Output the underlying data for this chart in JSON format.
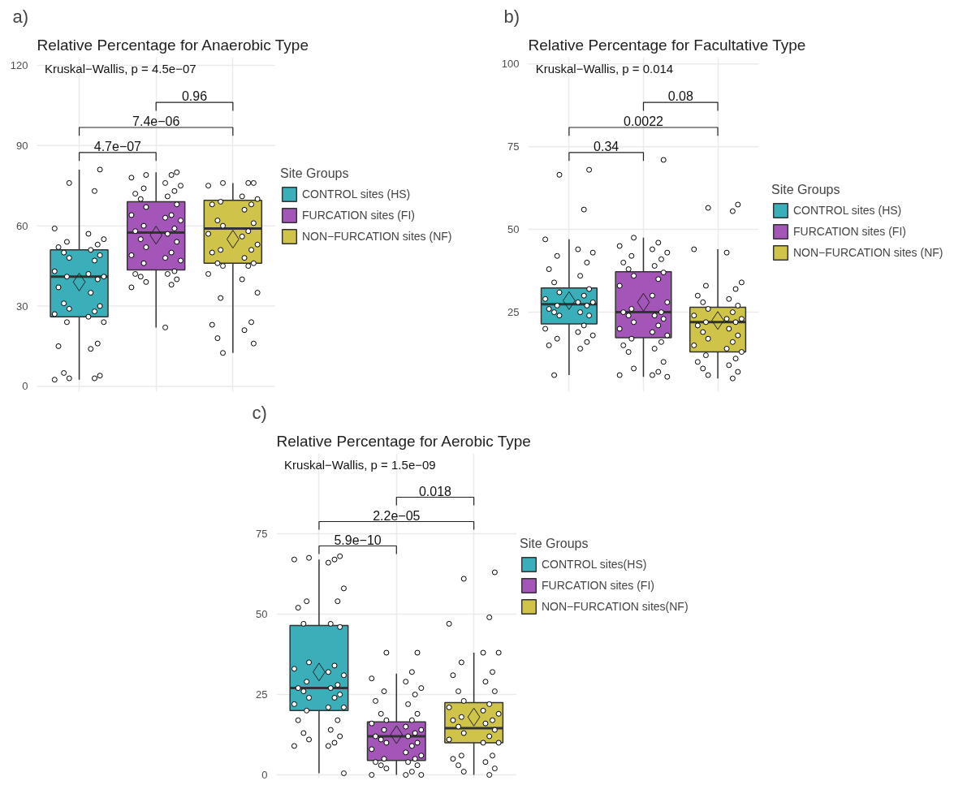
{
  "chart_data": [
    {
      "type": "box",
      "title": "Relative Percentage for Anaerobic Type",
      "legend_title": "Site Groups",
      "categories": [
        null,
        null,
        null
      ],
      "ylim": [
        -2,
        123
      ],
      "yticks": [
        0,
        30,
        60,
        90,
        120
      ],
      "grid": true,
      "legend": "right",
      "marker": "circle",
      "annotations": [
        "a)",
        "Kruskal−Wallis, p = 4.5e−07",
        "4.7e−07",
        "7.4e−06",
        "0.96"
      ],
      "series": [
        {
          "name": "CONTROL sites (HS)",
          "color": "#3aafb9",
          "boxes": [
            {
              "low": 2.5,
              "q1": 26,
              "median": 41,
              "q3": 51,
              "high": 81,
              "mean": 39
            },
            null,
            null
          ]
        },
        {
          "name": "FURCATION sites (FI)",
          "color": "#a356b8",
          "boxes": [
            null,
            {
              "low": 22,
              "q1": 43.5,
              "median": 57.5,
              "q3": 69,
              "high": 80,
              "mean": 56.5
            },
            null
          ]
        },
        {
          "name": "NON−FURCATION sites (NF)",
          "color": "#cfc34a",
          "boxes": [
            null,
            null,
            {
              "low": 12.5,
              "q1": 46,
              "median": 59,
              "q3": 69.5,
              "high": 76,
              "mean": 55
            }
          ]
        },
        {
          "type": "scatter",
          "color": "#000000",
          "values": [
            81,
            80,
            76
          ]
        },
        {
          "type": "scatter",
          "color": "#000000",
          "values": [
            76,
            79,
            76
          ]
        },
        {
          "type": "scatter",
          "color": "#000000",
          "values": [
            73,
            79,
            76
          ]
        },
        {
          "type": "scatter",
          "color": "#000000",
          "values": [
            59,
            78,
            75
          ]
        },
        {
          "type": "scatter",
          "color": "#000000",
          "values": [
            57,
            76,
            71
          ]
        },
        {
          "type": "scatter",
          "color": "#000000",
          "values": [
            55,
            75,
            70
          ]
        },
        {
          "type": "scatter",
          "color": "#000000",
          "values": [
            54,
            74,
            69
          ]
        },
        {
          "type": "scatter",
          "color": "#000000",
          "values": [
            53,
            73,
            68
          ]
        },
        {
          "type": "scatter",
          "color": "#000000",
          "values": [
            52,
            72,
            68
          ]
        },
        {
          "type": "scatter",
          "color": "#000000",
          "values": [
            51,
            71,
            66
          ]
        },
        {
          "type": "scatter",
          "color": "#000000",
          "values": [
            50,
            70,
            62
          ]
        },
        {
          "type": "scatter",
          "color": "#000000",
          "values": [
            49,
            68,
            61
          ]
        },
        {
          "type": "scatter",
          "color": "#000000",
          "values": [
            48,
            67,
            60
          ]
        },
        {
          "type": "scatter",
          "color": "#000000",
          "values": [
            47,
            64,
            58
          ]
        },
        {
          "type": "scatter",
          "color": "#000000",
          "values": [
            43,
            64,
            57
          ]
        },
        {
          "type": "scatter",
          "color": "#000000",
          "values": [
            42,
            63,
            56
          ]
        },
        {
          "type": "scatter",
          "color": "#000000",
          "values": [
            41,
            62,
            53
          ]
        },
        {
          "type": "scatter",
          "color": "#000000",
          "values": [
            41,
            60,
            51
          ]
        },
        {
          "type": "scatter",
          "color": "#000000",
          "values": [
            40,
            59,
            51
          ]
        },
        {
          "type": "scatter",
          "color": "#000000",
          "values": [
            37,
            58,
            50
          ]
        },
        {
          "type": "scatter",
          "color": "#000000",
          "values": [
            35,
            57,
            48
          ]
        },
        {
          "type": "scatter",
          "color": "#000000",
          "values": [
            31,
            55,
            46
          ]
        },
        {
          "type": "scatter",
          "color": "#000000",
          "values": [
            30,
            54,
            46
          ]
        },
        {
          "type": "scatter",
          "color": "#000000",
          "values": [
            29,
            52,
            45
          ]
        },
        {
          "type": "scatter",
          "color": "#000000",
          "values": [
            28,
            50,
            45
          ]
        },
        {
          "type": "scatter",
          "color": "#000000",
          "values": [
            27,
            49,
            42
          ]
        },
        {
          "type": "scatter",
          "color": "#000000",
          "values": [
            26,
            48,
            40
          ]
        },
        {
          "type": "scatter",
          "color": "#000000",
          "values": [
            24,
            47,
            35
          ]
        },
        {
          "type": "scatter",
          "color": "#000000",
          "values": [
            24,
            46,
            33
          ]
        },
        {
          "type": "scatter",
          "color": "#000000",
          "values": [
            16,
            43,
            24
          ]
        },
        {
          "type": "scatter",
          "color": "#000000",
          "values": [
            15,
            42,
            23
          ]
        },
        {
          "type": "scatter",
          "color": "#000000",
          "values": [
            14,
            42,
            21
          ]
        },
        {
          "type": "scatter",
          "color": "#000000",
          "values": [
            5,
            41,
            18
          ]
        },
        {
          "type": "scatter",
          "color": "#000000",
          "values": [
            4,
            40,
            16
          ]
        },
        {
          "type": "scatter",
          "color": "#000000",
          "values": [
            3,
            39,
            12.5
          ]
        },
        {
          "type": "scatter",
          "color": "#000000",
          "values": [
            3,
            38,
            null
          ]
        },
        {
          "type": "scatter",
          "color": "#000000",
          "values": [
            2.5,
            37,
            null
          ]
        },
        {
          "type": "scatter",
          "color": "#000000",
          "values": [
            null,
            22,
            null
          ]
        }
      ]
    },
    {
      "type": "box",
      "title": "Relative Percentage for Facultative Type",
      "legend_title": "Site Groups",
      "categories": [
        null,
        null,
        null
      ],
      "ylim": [
        1,
        102
      ],
      "yticks": [
        25,
        50,
        75,
        100
      ],
      "grid": true,
      "legend": "right",
      "marker": "circle",
      "annotations": [
        "b)",
        "Kruskal−Wallis, p = 0.014",
        "0.34",
        "0.0022",
        "0.08"
      ],
      "series": [
        {
          "name": "CONTROL sites (HS)",
          "color": "#3aafb9",
          "boxes": [
            {
              "low": 6,
              "q1": 21.5,
              "median": 27.4,
              "q3": 32.3,
              "high": 47,
              "mean": 28.5
            },
            null,
            null
          ]
        },
        {
          "name": "FURCATION sites (FI)",
          "color": "#a356b8",
          "boxes": [
            null,
            {
              "low": 5.5,
              "q1": 17.3,
              "median": 25,
              "q3": 37.2,
              "high": 47.5,
              "mean": 28
            },
            null
          ]
        },
        {
          "name": "NON−FURCATION sites (NF)",
          "color": "#cfc34a",
          "boxes": [
            null,
            null,
            {
              "low": 5,
              "q1": 13,
              "median": 22,
              "q3": 26.5,
              "high": 44,
              "mean": 22.5
            }
          ]
        },
        {
          "type": "scatter",
          "color": "#000000",
          "values": [
            68,
            71,
            57.5
          ]
        },
        {
          "type": "scatter",
          "color": "#000000",
          "values": [
            66.5,
            47.5,
            56.5
          ]
        },
        {
          "type": "scatter",
          "color": "#000000",
          "values": [
            56,
            46,
            55.5
          ]
        },
        {
          "type": "scatter",
          "color": "#000000",
          "values": [
            47,
            45,
            44
          ]
        },
        {
          "type": "scatter",
          "color": "#000000",
          "values": [
            44,
            44,
            43
          ]
        },
        {
          "type": "scatter",
          "color": "#000000",
          "values": [
            43,
            43,
            34
          ]
        },
        {
          "type": "scatter",
          "color": "#000000",
          "values": [
            42,
            42,
            33
          ]
        },
        {
          "type": "scatter",
          "color": "#000000",
          "values": [
            40,
            41,
            32
          ]
        },
        {
          "type": "scatter",
          "color": "#000000",
          "values": [
            38,
            40,
            30
          ]
        },
        {
          "type": "scatter",
          "color": "#000000",
          "values": [
            36,
            39,
            29
          ]
        },
        {
          "type": "scatter",
          "color": "#000000",
          "values": [
            34,
            38,
            28
          ]
        },
        {
          "type": "scatter",
          "color": "#000000",
          "values": [
            32,
            37,
            27
          ]
        },
        {
          "type": "scatter",
          "color": "#000000",
          "values": [
            31,
            36,
            26
          ]
        },
        {
          "type": "scatter",
          "color": "#000000",
          "values": [
            30,
            35,
            25
          ]
        },
        {
          "type": "scatter",
          "color": "#000000",
          "values": [
            29,
            33,
            24
          ]
        },
        {
          "type": "scatter",
          "color": "#000000",
          "values": [
            28,
            30,
            23
          ]
        },
        {
          "type": "scatter",
          "color": "#000000",
          "values": [
            28,
            28,
            23
          ]
        },
        {
          "type": "scatter",
          "color": "#000000",
          "values": [
            27,
            26,
            22
          ]
        },
        {
          "type": "scatter",
          "color": "#000000",
          "values": [
            27,
            25,
            22
          ]
        },
        {
          "type": "scatter",
          "color": "#000000",
          "values": [
            26,
            25,
            21
          ]
        },
        {
          "type": "scatter",
          "color": "#000000",
          "values": [
            25,
            24,
            20
          ]
        },
        {
          "type": "scatter",
          "color": "#000000",
          "values": [
            25,
            24,
            19
          ]
        },
        {
          "type": "scatter",
          "color": "#000000",
          "values": [
            24,
            23,
            18
          ]
        },
        {
          "type": "scatter",
          "color": "#000000",
          "values": [
            24,
            22,
            17
          ]
        },
        {
          "type": "scatter",
          "color": "#000000",
          "values": [
            21,
            21,
            16
          ]
        },
        {
          "type": "scatter",
          "color": "#000000",
          "values": [
            20,
            20,
            15
          ]
        },
        {
          "type": "scatter",
          "color": "#000000",
          "values": [
            19,
            19,
            14
          ]
        },
        {
          "type": "scatter",
          "color": "#000000",
          "values": [
            18,
            18,
            13
          ]
        },
        {
          "type": "scatter",
          "color": "#000000",
          "values": [
            17,
            17,
            12
          ]
        },
        {
          "type": "scatter",
          "color": "#000000",
          "values": [
            16,
            16,
            11
          ]
        },
        {
          "type": "scatter",
          "color": "#000000",
          "values": [
            15,
            15,
            10
          ]
        },
        {
          "type": "scatter",
          "color": "#000000",
          "values": [
            14,
            14,
            9
          ]
        },
        {
          "type": "scatter",
          "color": "#000000",
          "values": [
            6,
            13,
            8
          ]
        },
        {
          "type": "scatter",
          "color": "#000000",
          "values": [
            null,
            10,
            7
          ]
        },
        {
          "type": "scatter",
          "color": "#000000",
          "values": [
            null,
            8,
            6
          ]
        },
        {
          "type": "scatter",
          "color": "#000000",
          "values": [
            null,
            7,
            5
          ]
        },
        {
          "type": "scatter",
          "color": "#000000",
          "values": [
            null,
            6,
            null
          ]
        },
        {
          "type": "scatter",
          "color": "#000000",
          "values": [
            null,
            6,
            null
          ]
        },
        {
          "type": "scatter",
          "color": "#000000",
          "values": [
            null,
            5.5,
            null
          ]
        }
      ]
    },
    {
      "type": "box",
      "title": "Relative Percentage for Aerobic Type",
      "legend_title": "Site Groups",
      "categories": [
        null,
        null,
        null
      ],
      "ylim": [
        -1,
        100
      ],
      "yticks": [
        0,
        25,
        50,
        75
      ],
      "grid": true,
      "legend": "right",
      "marker": "circle",
      "annotations": [
        "c)",
        "Kruskal−Wallis, p = 1.5e−09",
        "5.9e−10",
        "2.2e−05",
        "0.018"
      ],
      "series": [
        {
          "name": "CONTROL sites(HS)",
          "color": "#3aafb9",
          "boxes": [
            {
              "low": 0.5,
              "q1": 20,
              "median": 27,
              "q3": 46.5,
              "high": 67,
              "mean": 32
            },
            null,
            null
          ]
        },
        {
          "name": "FURCATION sites (FI)",
          "color": "#a356b8",
          "boxes": [
            null,
            {
              "low": 0,
              "q1": 4.5,
              "median": 12,
              "q3": 16.5,
              "high": 31.5,
              "mean": 12.5
            },
            null
          ]
        },
        {
          "name": "NON−FURCATION sites(NF)",
          "color": "#cfc34a",
          "boxes": [
            null,
            null,
            {
              "low": 0,
              "q1": 10,
              "median": 14.5,
              "q3": 22.5,
              "high": 38,
              "mean": 18
            }
          ]
        },
        {
          "type": "scatter",
          "color": "#000000",
          "values": [
            68,
            38,
            63
          ]
        },
        {
          "type": "scatter",
          "color": "#000000",
          "values": [
            67.5,
            38,
            61
          ]
        },
        {
          "type": "scatter",
          "color": "#000000",
          "values": [
            67,
            32,
            49
          ]
        },
        {
          "type": "scatter",
          "color": "#000000",
          "values": [
            67,
            30,
            47
          ]
        },
        {
          "type": "scatter",
          "color": "#000000",
          "values": [
            66,
            29,
            38
          ]
        },
        {
          "type": "scatter",
          "color": "#000000",
          "values": [
            58,
            27,
            38
          ]
        },
        {
          "type": "scatter",
          "color": "#000000",
          "values": [
            54,
            26,
            35
          ]
        },
        {
          "type": "scatter",
          "color": "#000000",
          "values": [
            54,
            25,
            32
          ]
        },
        {
          "type": "scatter",
          "color": "#000000",
          "values": [
            52,
            23,
            31
          ]
        },
        {
          "type": "scatter",
          "color": "#000000",
          "values": [
            47,
            22,
            29
          ]
        },
        {
          "type": "scatter",
          "color": "#000000",
          "values": [
            47,
            19,
            26
          ]
        },
        {
          "type": "scatter",
          "color": "#000000",
          "values": [
            46,
            19,
            26
          ]
        },
        {
          "type": "scatter",
          "color": "#000000",
          "values": [
            35,
            17,
            23
          ]
        },
        {
          "type": "scatter",
          "color": "#000000",
          "values": [
            34,
            17,
            22
          ]
        },
        {
          "type": "scatter",
          "color": "#000000",
          "values": [
            33,
            16,
            21
          ]
        },
        {
          "type": "scatter",
          "color": "#000000",
          "values": [
            32,
            15,
            20
          ]
        },
        {
          "type": "scatter",
          "color": "#000000",
          "values": [
            31,
            14,
            19
          ]
        },
        {
          "type": "scatter",
          "color": "#000000",
          "values": [
            29,
            14,
            18
          ]
        },
        {
          "type": "scatter",
          "color": "#000000",
          "values": [
            28,
            13,
            17
          ]
        },
        {
          "type": "scatter",
          "color": "#000000",
          "values": [
            27,
            12,
            17
          ]
        },
        {
          "type": "scatter",
          "color": "#000000",
          "values": [
            27,
            12,
            16
          ]
        },
        {
          "type": "scatter",
          "color": "#000000",
          "values": [
            26,
            11,
            15
          ]
        },
        {
          "type": "scatter",
          "color": "#000000",
          "values": [
            25,
            10,
            14
          ]
        },
        {
          "type": "scatter",
          "color": "#000000",
          "values": [
            24,
            10,
            13
          ]
        },
        {
          "type": "scatter",
          "color": "#000000",
          "values": [
            24,
            9,
            12
          ]
        },
        {
          "type": "scatter",
          "color": "#000000",
          "values": [
            22,
            8,
            11
          ]
        },
        {
          "type": "scatter",
          "color": "#000000",
          "values": [
            21,
            7,
            10
          ]
        },
        {
          "type": "scatter",
          "color": "#000000",
          "values": [
            21,
            6,
            10
          ]
        },
        {
          "type": "scatter",
          "color": "#000000",
          "values": [
            20,
            5,
            6
          ]
        },
        {
          "type": "scatter",
          "color": "#000000",
          "values": [
            17,
            5,
            6
          ]
        },
        {
          "type": "scatter",
          "color": "#000000",
          "values": [
            17,
            4,
            5
          ]
        },
        {
          "type": "scatter",
          "color": "#000000",
          "values": [
            14,
            4,
            4
          ]
        },
        {
          "type": "scatter",
          "color": "#000000",
          "values": [
            13,
            3,
            3
          ]
        },
        {
          "type": "scatter",
          "color": "#000000",
          "values": [
            12,
            3,
            2
          ]
        },
        {
          "type": "scatter",
          "color": "#000000",
          "values": [
            11,
            2,
            1
          ]
        },
        {
          "type": "scatter",
          "color": "#000000",
          "values": [
            10,
            1,
            0
          ]
        },
        {
          "type": "scatter",
          "color": "#000000",
          "values": [
            9,
            0,
            null
          ]
        },
        {
          "type": "scatter",
          "color": "#000000",
          "values": [
            9,
            0,
            null
          ]
        },
        {
          "type": "scatter",
          "color": "#000000",
          "values": [
            0.5,
            0,
            null
          ]
        }
      ]
    }
  ]
}
